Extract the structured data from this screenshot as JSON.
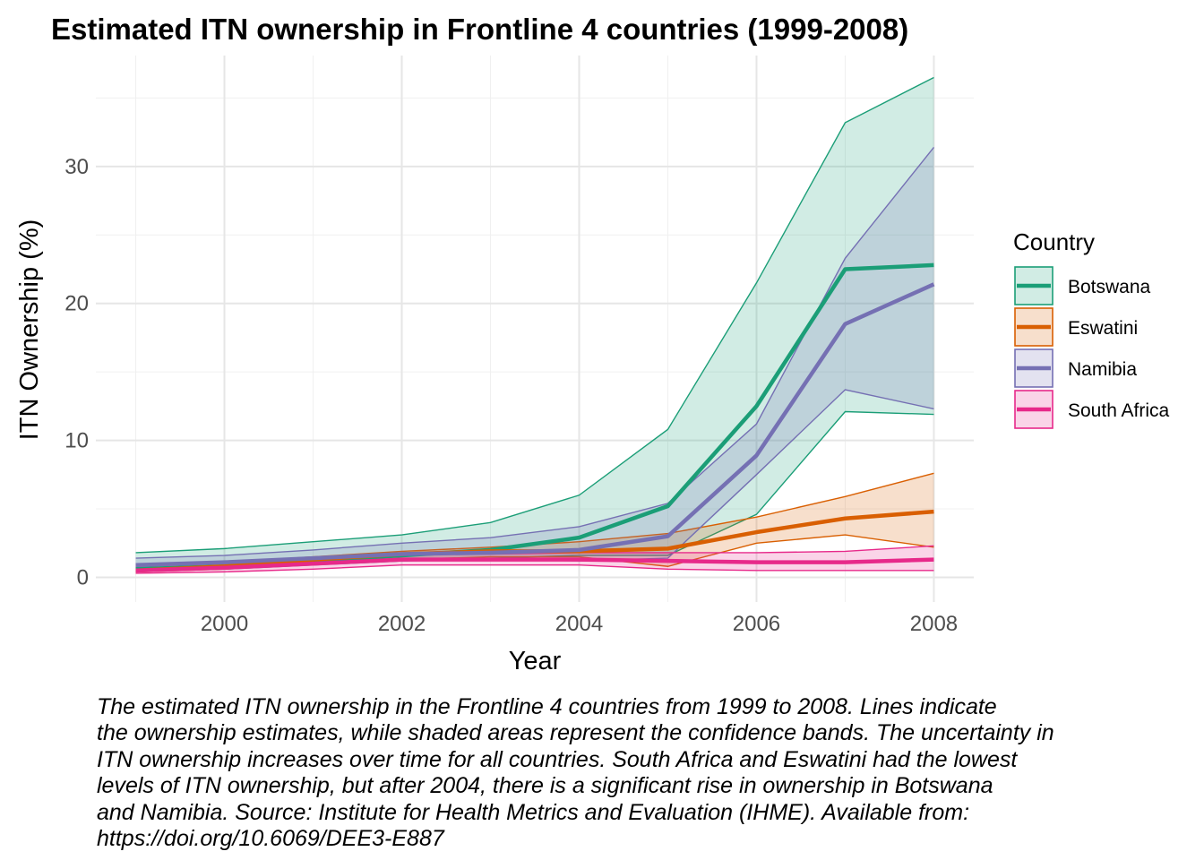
{
  "chart_data": {
    "type": "area",
    "title": "Estimated ITN ownership in Frontline 4 countries (1999-2008)",
    "xlabel": "Year",
    "ylabel": "ITN Ownership (%)",
    "x": [
      1999,
      2000,
      2001,
      2002,
      2003,
      2004,
      2005,
      2006,
      2007,
      2008
    ],
    "xlim": [
      1998.55,
      2008.45
    ],
    "ylim": [
      -1.8,
      38.1
    ],
    "x_ticks": [
      2000,
      2002,
      2004,
      2006,
      2008
    ],
    "x_tick_labels": [
      "2000",
      "2002",
      "2004",
      "2006",
      "2008"
    ],
    "y_ticks": [
      0,
      10,
      20,
      30
    ],
    "y_tick_labels": [
      "0",
      "10",
      "20",
      "30"
    ],
    "grid": true,
    "legend": {
      "title": "Country",
      "position": "right"
    },
    "series": [
      {
        "name": "Botswana",
        "color": "#1b9e77",
        "values": [
          0.6,
          0.8,
          1.2,
          1.6,
          2.0,
          2.9,
          5.2,
          12.5,
          22.5,
          22.8
        ],
        "lower": [
          0.5,
          0.6,
          0.9,
          1.2,
          1.4,
          1.6,
          1.6,
          4.6,
          12.1,
          11.9
        ],
        "upper": [
          1.8,
          2.1,
          2.6,
          3.1,
          4.0,
          6.0,
          10.8,
          21.5,
          33.2,
          36.5
        ]
      },
      {
        "name": "Eswatini",
        "color": "#d95f02",
        "values": [
          0.5,
          0.8,
          1.3,
          1.7,
          1.9,
          1.9,
          2.1,
          3.3,
          4.3,
          4.8
        ],
        "lower": [
          0.4,
          0.6,
          1.0,
          1.3,
          1.5,
          1.5,
          0.8,
          2.5,
          3.1,
          2.2
        ],
        "upper": [
          0.9,
          1.1,
          1.5,
          1.9,
          2.2,
          2.6,
          3.2,
          4.4,
          5.9,
          7.6
        ]
      },
      {
        "name": "Namibia",
        "color": "#7570b3",
        "values": [
          0.9,
          1.1,
          1.4,
          1.7,
          1.8,
          2.0,
          3.0,
          8.9,
          18.5,
          21.4
        ],
        "lower": [
          0.6,
          0.8,
          1.0,
          1.2,
          1.3,
          1.2,
          1.4,
          7.5,
          13.7,
          12.3
        ],
        "upper": [
          1.4,
          1.6,
          2.0,
          2.5,
          2.9,
          3.7,
          5.4,
          11.2,
          23.3,
          31.4
        ]
      },
      {
        "name": "South Africa",
        "color": "#e7298a",
        "values": [
          0.5,
          0.7,
          1.0,
          1.3,
          1.3,
          1.3,
          1.2,
          1.1,
          1.1,
          1.3
        ],
        "lower": [
          0.3,
          0.4,
          0.6,
          0.9,
          0.9,
          0.9,
          0.6,
          0.5,
          0.5,
          0.5
        ],
        "upper": [
          0.8,
          1.0,
          1.4,
          1.7,
          1.7,
          1.8,
          1.8,
          1.8,
          1.9,
          2.3
        ]
      }
    ]
  },
  "caption": "The estimated ITN ownership in the Frontline 4 countries from 1999 to 2008. Lines indicate\nthe ownership estimates, while shaded areas represent the confidence bands. The uncertainty in\nITN ownership increases over time for all countries. South Africa and Eswatini had the lowest\nlevels of ITN ownership, but after 2004, there is a significant rise in ownership in Botswana\nand Namibia. Source: Institute for Health Metrics and Evaluation (IHME). Available from:\nhttps://doi.org/10.6069/DEE3-E887"
}
